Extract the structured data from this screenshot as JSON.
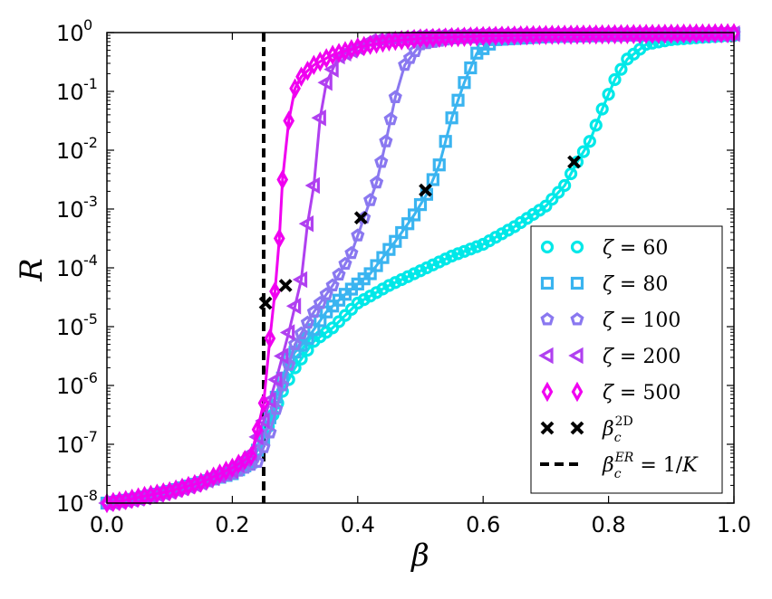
{
  "chart_data": {
    "type": "line",
    "xlabel": "β",
    "ylabel": "R",
    "xlim": [
      0.0,
      1.0
    ],
    "ylim_log10": [
      -8,
      0
    ],
    "yscale": "log",
    "x_ticks": [
      0.0,
      0.2,
      0.4,
      0.6,
      0.8,
      1.0
    ],
    "x_tick_labels": [
      "0.0",
      "0.2",
      "0.4",
      "0.6",
      "0.8",
      "1.0"
    ],
    "y_ticks_exp": [
      0,
      -1,
      -2,
      -3,
      -4,
      -5,
      -6,
      -7,
      -8
    ],
    "y_tick_bases": [
      "10",
      "10",
      "10",
      "10",
      "10",
      "10",
      "10",
      "10",
      "10"
    ],
    "y_tick_exps": [
      "0",
      "-1",
      "-2",
      "-3",
      "-4",
      "-5",
      "-6",
      "-7",
      "-8"
    ],
    "legend_position": "lower-right",
    "colors": {
      "z60": "#00e8e8",
      "z80": "#3ab4f0",
      "z100": "#8a78f0",
      "z200": "#b040f0",
      "z500": "#f000f0",
      "cross": "#000000",
      "vline": "#000000"
    },
    "series": [
      {
        "name": "ζ = 60",
        "key": "z60",
        "marker": "circle",
        "legend_parts": [
          "ζ",
          " = ",
          "60"
        ],
        "points": [
          [
            0.0,
            -8.0
          ],
          [
            0.05,
            -7.92
          ],
          [
            0.1,
            -7.8
          ],
          [
            0.15,
            -7.65
          ],
          [
            0.2,
            -7.45
          ],
          [
            0.23,
            -7.3
          ],
          [
            0.25,
            -6.9
          ],
          [
            0.265,
            -6.5
          ],
          [
            0.28,
            -6.1
          ],
          [
            0.3,
            -5.7
          ],
          [
            0.33,
            -5.25
          ],
          [
            0.36,
            -5.02
          ],
          [
            0.4,
            -4.6
          ],
          [
            0.45,
            -4.3
          ],
          [
            0.5,
            -4.05
          ],
          [
            0.55,
            -3.8
          ],
          [
            0.6,
            -3.6
          ],
          [
            0.65,
            -3.3
          ],
          [
            0.7,
            -2.95
          ],
          [
            0.73,
            -2.6
          ],
          [
            0.75,
            -2.2
          ],
          [
            0.77,
            -1.85
          ],
          [
            0.79,
            -1.3
          ],
          [
            0.81,
            -0.8
          ],
          [
            0.83,
            -0.45
          ],
          [
            0.86,
            -0.2
          ],
          [
            0.9,
            -0.12
          ],
          [
            0.95,
            -0.08
          ],
          [
            1.0,
            -0.05
          ]
        ]
      },
      {
        "name": "ζ = 80",
        "key": "z80",
        "marker": "square",
        "legend_parts": [
          "ζ",
          " = ",
          "80"
        ],
        "points": [
          [
            0.0,
            -8.0
          ],
          [
            0.05,
            -7.92
          ],
          [
            0.1,
            -7.8
          ],
          [
            0.15,
            -7.65
          ],
          [
            0.2,
            -7.5
          ],
          [
            0.23,
            -7.3
          ],
          [
            0.25,
            -6.9
          ],
          [
            0.27,
            -6.2
          ],
          [
            0.29,
            -5.55
          ],
          [
            0.32,
            -5.2
          ],
          [
            0.35,
            -4.75
          ],
          [
            0.38,
            -4.45
          ],
          [
            0.42,
            -4.1
          ],
          [
            0.46,
            -3.55
          ],
          [
            0.49,
            -3.1
          ],
          [
            0.51,
            -2.75
          ],
          [
            0.53,
            -2.25
          ],
          [
            0.55,
            -1.45
          ],
          [
            0.57,
            -0.85
          ],
          [
            0.59,
            -0.35
          ],
          [
            0.62,
            -0.12
          ],
          [
            0.7,
            -0.07
          ],
          [
            0.8,
            -0.05
          ],
          [
            0.9,
            -0.03
          ],
          [
            1.0,
            -0.02
          ]
        ]
      },
      {
        "name": "ζ = 100",
        "key": "z100",
        "marker": "pentagon",
        "legend_parts": [
          "ζ",
          " = ",
          "100"
        ],
        "points": [
          [
            0.0,
            -8.0
          ],
          [
            0.05,
            -7.92
          ],
          [
            0.1,
            -7.8
          ],
          [
            0.15,
            -7.65
          ],
          [
            0.2,
            -7.5
          ],
          [
            0.24,
            -7.3
          ],
          [
            0.26,
            -6.8
          ],
          [
            0.28,
            -6.0
          ],
          [
            0.3,
            -5.3
          ],
          [
            0.33,
            -4.75
          ],
          [
            0.36,
            -4.3
          ],
          [
            0.39,
            -3.75
          ],
          [
            0.41,
            -3.15
          ],
          [
            0.43,
            -2.55
          ],
          [
            0.445,
            -1.85
          ],
          [
            0.46,
            -1.1
          ],
          [
            0.475,
            -0.55
          ],
          [
            0.5,
            -0.2
          ],
          [
            0.55,
            -0.1
          ],
          [
            0.65,
            -0.06
          ],
          [
            0.8,
            -0.04
          ],
          [
            1.0,
            -0.02
          ]
        ]
      },
      {
        "name": "ζ = 200",
        "key": "z200",
        "marker": "triangle-left",
        "legend_parts": [
          "ζ",
          " = ",
          "200"
        ],
        "points": [
          [
            0.0,
            -8.0
          ],
          [
            0.05,
            -7.92
          ],
          [
            0.1,
            -7.8
          ],
          [
            0.15,
            -7.65
          ],
          [
            0.2,
            -7.45
          ],
          [
            0.23,
            -7.15
          ],
          [
            0.25,
            -6.6
          ],
          [
            0.27,
            -5.9
          ],
          [
            0.29,
            -5.1
          ],
          [
            0.31,
            -4.2
          ],
          [
            0.32,
            -3.25
          ],
          [
            0.33,
            -2.6
          ],
          [
            0.34,
            -1.45
          ],
          [
            0.35,
            -0.85
          ],
          [
            0.37,
            -0.4
          ],
          [
            0.42,
            -0.15
          ],
          [
            0.5,
            -0.08
          ],
          [
            0.6,
            -0.05
          ],
          [
            0.8,
            -0.03
          ],
          [
            1.0,
            -0.02
          ]
        ]
      },
      {
        "name": "ζ = 500",
        "key": "z500",
        "marker": "diamond",
        "legend_parts": [
          "ζ",
          " = ",
          "500"
        ],
        "points": [
          [
            0.0,
            -8.0
          ],
          [
            0.03,
            -7.95
          ],
          [
            0.06,
            -7.88
          ],
          [
            0.1,
            -7.8
          ],
          [
            0.15,
            -7.65
          ],
          [
            0.2,
            -7.4
          ],
          [
            0.23,
            -7.2
          ],
          [
            0.25,
            -6.3
          ],
          [
            0.26,
            -5.2
          ],
          [
            0.268,
            -4.4
          ],
          [
            0.275,
            -3.5
          ],
          [
            0.28,
            -2.5
          ],
          [
            0.29,
            -1.5
          ],
          [
            0.3,
            -0.95
          ],
          [
            0.31,
            -0.75
          ],
          [
            0.33,
            -0.55
          ],
          [
            0.36,
            -0.38
          ],
          [
            0.4,
            -0.25
          ],
          [
            0.45,
            -0.15
          ],
          [
            0.5,
            -0.1
          ],
          [
            0.6,
            -0.06
          ],
          [
            0.7,
            -0.04
          ],
          [
            0.8,
            -0.03
          ],
          [
            0.9,
            -0.02
          ],
          [
            1.0,
            -0.01
          ]
        ]
      }
    ],
    "crosses": {
      "name": "β_c^2D",
      "legend_parts": [
        "β",
        "c",
        "2D"
      ],
      "points": [
        [
          0.253,
          -4.6
        ],
        [
          0.285,
          -4.3
        ],
        [
          0.405,
          -3.15
        ],
        [
          0.508,
          -2.68
        ],
        [
          0.745,
          -2.2
        ]
      ]
    },
    "vline": {
      "name": "β_c^ER = 1/K",
      "legend_parts": [
        "β",
        "c",
        "ER",
        " = 1/",
        "K"
      ],
      "x": 0.25
    }
  }
}
